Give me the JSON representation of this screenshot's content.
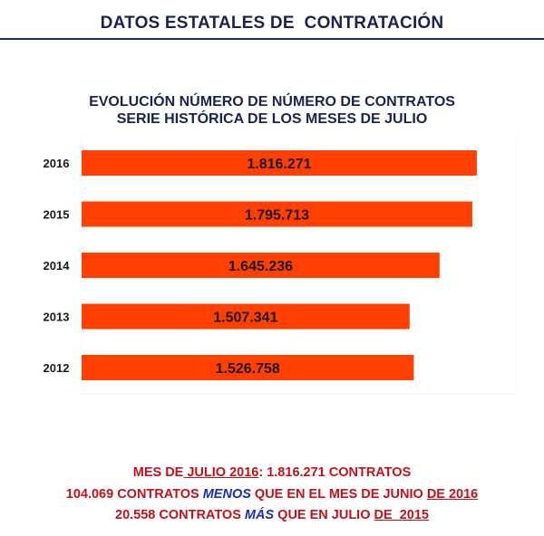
{
  "header": {
    "title": "DATOS ESTATALES DE  CONTRATACIÓN"
  },
  "chart_data": {
    "type": "bar",
    "orientation": "horizontal",
    "title_lines": [
      "EVOLUCIÓN NÚMERO DE NÚMERO DE CONTRATOS",
      "SERIE HISTÓRICA DE LOS MESES DE JULIO"
    ],
    "categories": [
      "2016",
      "2015",
      "2014",
      "2013",
      "2012"
    ],
    "values": [
      1816271,
      1795713,
      1645236,
      1507341,
      1526758
    ],
    "value_labels": [
      "1.816.271",
      "1.795.713",
      "1.645.236",
      "1.507.341",
      "1.526.758"
    ],
    "xlim": [
      0,
      2000000
    ],
    "bar_color": "#ff4000",
    "label_color": "#1a1a1a",
    "grid": false
  },
  "footer": {
    "line1": {
      "a": "MES DE",
      "b": " JULIO 2016",
      "c": ": 1.816.271 CONTRATOS"
    },
    "line2": {
      "a": "104.069 CONTRATOS ",
      "b": "MENOS",
      "c": " QUE EN EL MES DE JUNIO ",
      "d": "DE 2016"
    },
    "line3": {
      "a": "20.558 CONTRATOS ",
      "b": "MÁS",
      "c": " QUE EN JULIO ",
      "d": "DE  2015"
    }
  }
}
